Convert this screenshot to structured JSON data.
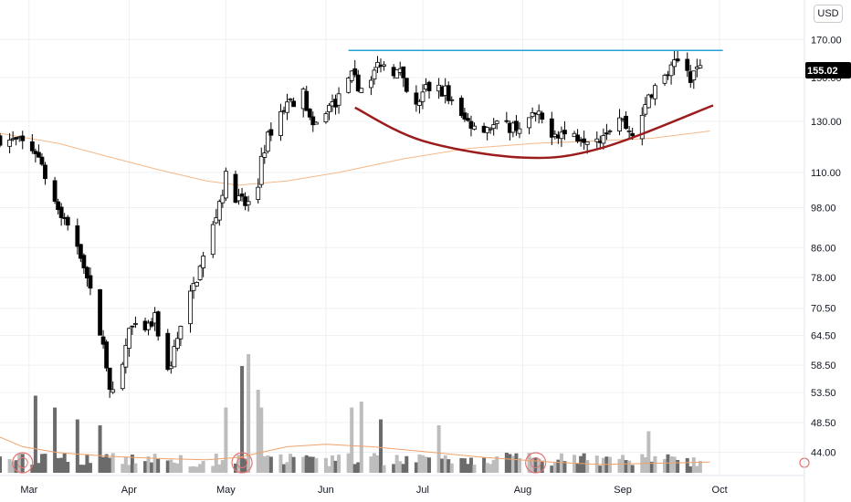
{
  "currency": "USD",
  "last_price_label": "155.02",
  "chart_data": {
    "type": "candlestick",
    "scale": "log",
    "ylim": [
      42,
      185
    ],
    "y_ticks": [
      "170.00",
      "150.00",
      "130.00",
      "110.00",
      "98.00",
      "86.00",
      "78.00",
      "70.50",
      "64.50",
      "58.50",
      "53.50",
      "48.50",
      "44.00"
    ],
    "x_ticks": [
      "Mar",
      "Apr",
      "May",
      "Jun",
      "Jul",
      "Aug",
      "Sep",
      "Oct"
    ],
    "x_range": [
      "2020-02-21",
      "2020-10-09"
    ],
    "grid": true,
    "colors": {
      "up": "#ffffff",
      "down": "#000000",
      "wick": "#000000",
      "ma": "#f5b98a",
      "resistance": "#2a9fd6",
      "cup": "#9b1c1c",
      "vol_dark": "#6b6b6b",
      "vol_light": "#bdbdbd",
      "vol_ma": "#f0a36b",
      "earnings": "#e57373",
      "badge": "#000000"
    },
    "resistance_level": 164,
    "resistance_range": [
      "2020-06-08",
      "2020-10-02"
    ],
    "cup_curve": [
      [
        "2020-06-10",
        136
      ],
      [
        "2020-07-01",
        122
      ],
      [
        "2020-08-01",
        115.5
      ],
      [
        "2020-08-25",
        119
      ],
      [
        "2020-09-29",
        137
      ]
    ],
    "earnings_dates": [
      "2020-02-28",
      "2020-05-06",
      "2020-08-05"
    ],
    "moving_average": [
      [
        "2020-02-21",
        125
      ],
      [
        "2020-03-10",
        121
      ],
      [
        "2020-03-25",
        116
      ],
      [
        "2020-04-10",
        111
      ],
      [
        "2020-04-25",
        107
      ],
      [
        "2020-05-05",
        105.5
      ],
      [
        "2020-05-20",
        107
      ],
      [
        "2020-06-05",
        110
      ],
      [
        "2020-06-25",
        115
      ],
      [
        "2020-07-15",
        119
      ],
      [
        "2020-08-05",
        121
      ],
      [
        "2020-08-25",
        122
      ],
      [
        "2020-09-10",
        123
      ],
      [
        "2020-09-28",
        126
      ]
    ],
    "volume_ma": [
      [
        "2020-02-21",
        0.3
      ],
      [
        "2020-02-28",
        0.22
      ],
      [
        "2020-03-10",
        0.17
      ],
      [
        "2020-03-25",
        0.14
      ],
      [
        "2020-04-10",
        0.12
      ],
      [
        "2020-04-25",
        0.11
      ],
      [
        "2020-05-05",
        0.13
      ],
      [
        "2020-05-20",
        0.22
      ],
      [
        "2020-06-01",
        0.24
      ],
      [
        "2020-06-15",
        0.22
      ],
      [
        "2020-07-01",
        0.18
      ],
      [
        "2020-07-20",
        0.13
      ],
      [
        "2020-08-10",
        0.09
      ],
      [
        "2020-08-25",
        0.07
      ],
      [
        "2020-09-10",
        0.08
      ],
      [
        "2020-09-28",
        0.09
      ]
    ]
  }
}
